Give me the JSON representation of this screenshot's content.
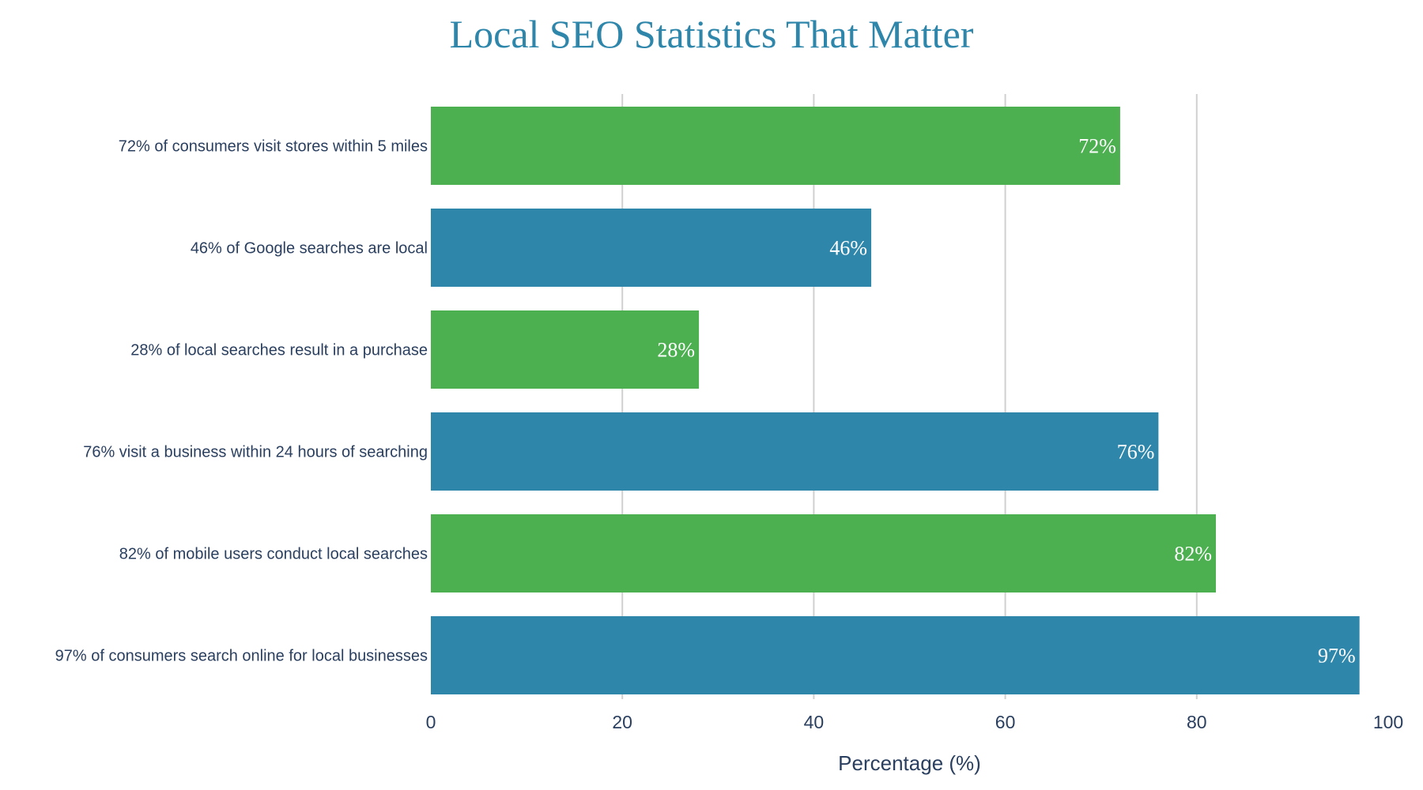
{
  "chart_data": {
    "type": "bar",
    "orientation": "horizontal",
    "title": "Local SEO Statistics That Matter",
    "xlabel": "Percentage (%)",
    "ylabel": "",
    "xlim": [
      0,
      100
    ],
    "xticks": [
      "0",
      "20",
      "40",
      "60",
      "80",
      "100"
    ],
    "grid": "vertical",
    "categories": [
      "72% of consumers visit stores within 5 miles",
      "46% of Google searches are local",
      "28% of local searches result in a purchase",
      "76% visit a business within 24 hours of searching",
      "82% of mobile users conduct local searches",
      "97% of consumers search online for local businesses"
    ],
    "values": [
      72,
      46,
      28,
      76,
      82,
      97
    ],
    "value_labels": [
      "72%",
      "46%",
      "28%",
      "76%",
      "82%",
      "97%"
    ],
    "colors": [
      "#4CAF50",
      "#2E86AB",
      "#4CAF50",
      "#2E86AB",
      "#4CAF50",
      "#2E86AB"
    ]
  }
}
